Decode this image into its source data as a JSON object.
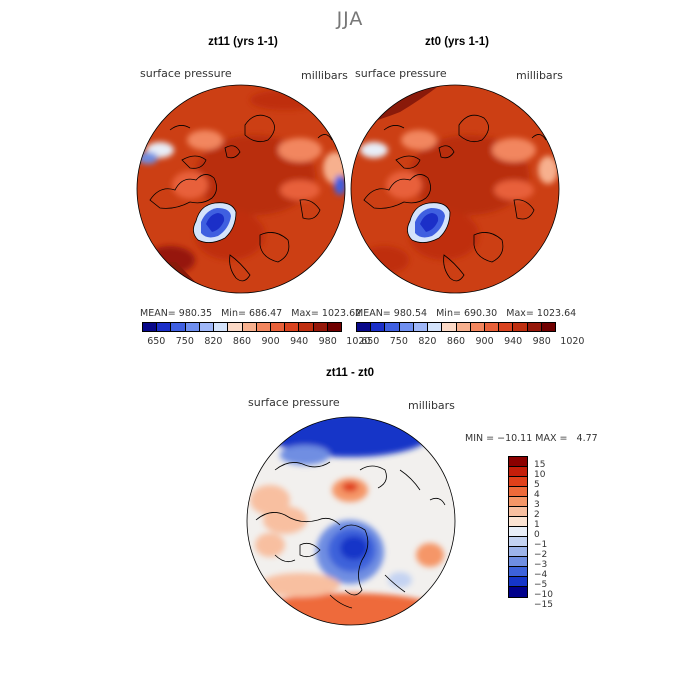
{
  "figure_title": "JJA",
  "panels": [
    {
      "title": "zt11 (yrs 1-1)",
      "field_label": "surface pressure",
      "units": "millibars",
      "stats": {
        "mean_label": "MEAN=",
        "mean": "980.35",
        "min_label": "Min=",
        "min": "686.47",
        "max_label": "Max=",
        "max": "1023.62"
      }
    },
    {
      "title": "zt0 (yrs 1-1)",
      "field_label": "surface pressure",
      "units": "millibars",
      "stats": {
        "mean_label": "MEAN=",
        "mean": "980.54",
        "min_label": "Min=",
        "min": "690.30",
        "max_label": "Max=",
        "max": "1023.64"
      }
    }
  ],
  "pressure_colorbar": {
    "colors": [
      "#08088a",
      "#1b2fc8",
      "#3f5fe0",
      "#6f8ff0",
      "#9fb7f8",
      "#d4e3fb",
      "#fbd9c6",
      "#f7b08e",
      "#f2865e",
      "#e8613a",
      "#d9431f",
      "#bf2f10",
      "#96180a",
      "#700000"
    ],
    "tick_labels": [
      "650",
      "750",
      "820",
      "860",
      "900",
      "940",
      "980",
      "1020"
    ]
  },
  "difference": {
    "title": "zt11 - zt0",
    "field_label": "surface pressure",
    "units": "millibars",
    "min_max": "MIN = −10.11 MAX =   4.77",
    "colorbar": {
      "colors": [
        "#8b0000",
        "#c41e0a",
        "#e0401a",
        "#ee6a3a",
        "#f59667",
        "#f8bfa0",
        "#fbe3d3",
        "#e8eef8",
        "#c4d3f2",
        "#9db4ea",
        "#6f8ee2",
        "#3d62da",
        "#1535c8",
        "#00008b"
      ],
      "tick_labels": [
        "15",
        "10",
        "5",
        "4",
        "3",
        "2",
        "1",
        "0",
        "−1",
        "−2",
        "−3",
        "−4",
        "−5",
        "−10",
        "−15"
      ]
    }
  }
}
